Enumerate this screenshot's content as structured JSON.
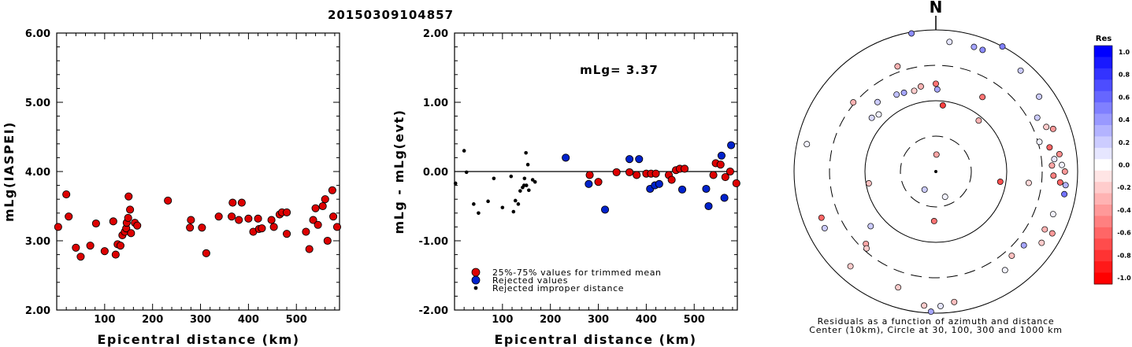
{
  "title": "20150309104857",
  "chart_data": [
    {
      "type": "scatter",
      "ylabel": "mLg(IASPEI)",
      "xlabel": "Epicentral distance (km)",
      "xlim": [
        0,
        590
      ],
      "ylim": [
        2.0,
        6.0
      ],
      "xticks": [
        "100",
        "200",
        "300",
        "400",
        "500"
      ],
      "yticks": [
        "2.00",
        "3.00",
        "4.00",
        "5.00",
        "6.00"
      ],
      "series": [
        {
          "marker": "red-circle",
          "points": [
            [
              3,
              3.2
            ],
            [
              20,
              3.67
            ],
            [
              25,
              3.35
            ],
            [
              40,
              2.9
            ],
            [
              50,
              2.77
            ],
            [
              70,
              2.93
            ],
            [
              82,
              3.25
            ],
            [
              100,
              2.85
            ],
            [
              118,
              3.28
            ],
            [
              123,
              2.8
            ],
            [
              127,
              2.95
            ],
            [
              133,
              2.93
            ],
            [
              137,
              3.08
            ],
            [
              142,
              3.13
            ],
            [
              145,
              3.18
            ],
            [
              146,
              3.26
            ],
            [
              149,
              3.33
            ],
            [
              150,
              3.64
            ],
            [
              153,
              3.45
            ],
            [
              155,
              3.11
            ],
            [
              163,
              3.26
            ],
            [
              168,
              3.22
            ],
            [
              232,
              3.58
            ],
            [
              278,
              3.19
            ],
            [
              280,
              3.3
            ],
            [
              303,
              3.19
            ],
            [
              312,
              2.82
            ],
            [
              338,
              3.35
            ],
            [
              365,
              3.35
            ],
            [
              367,
              3.55
            ],
            [
              380,
              3.3
            ],
            [
              386,
              3.55
            ],
            [
              400,
              3.32
            ],
            [
              410,
              3.13
            ],
            [
              420,
              3.32
            ],
            [
              422,
              3.17
            ],
            [
              428,
              3.18
            ],
            [
              448,
              3.3
            ],
            [
              453,
              3.2
            ],
            [
              465,
              3.38
            ],
            [
              470,
              3.41
            ],
            [
              480,
              3.41
            ],
            [
              480,
              3.1
            ],
            [
              520,
              3.13
            ],
            [
              527,
              2.88
            ],
            [
              535,
              3.3
            ],
            [
              540,
              3.47
            ],
            [
              545,
              3.23
            ],
            [
              555,
              3.5
            ],
            [
              560,
              3.6
            ],
            [
              565,
              3.0
            ],
            [
              575,
              3.73
            ],
            [
              577,
              3.35
            ],
            [
              585,
              3.2
            ]
          ]
        }
      ]
    },
    {
      "type": "scatter",
      "ylabel": "mLg - mLg(evt)",
      "xlabel": "Epicentral distance (km)",
      "xlim": [
        0,
        590
      ],
      "ylim": [
        -2.0,
        2.0
      ],
      "xticks": [
        "100",
        "200",
        "300",
        "400",
        "500"
      ],
      "yticks": [
        "-2.00",
        "-1.00",
        "0.00",
        "1.00",
        "2.00"
      ],
      "annotation": "mLg= 3.37",
      "legend": [
        "25%-75% values for trimmed mean",
        "Rejected values",
        "Rejected improper distance"
      ],
      "series": [
        {
          "marker": "red-circle",
          "points": [
            [
              282,
              -0.05
            ],
            [
              300,
              -0.15
            ],
            [
              338,
              -0.01
            ],
            [
              365,
              -0.01
            ],
            [
              380,
              -0.05
            ],
            [
              400,
              -0.03
            ],
            [
              410,
              -0.03
            ],
            [
              420,
              -0.03
            ],
            [
              447,
              -0.05
            ],
            [
              453,
              -0.12
            ],
            [
              462,
              0.02
            ],
            [
              470,
              0.04
            ],
            [
              480,
              0.04
            ],
            [
              540,
              -0.05
            ],
            [
              545,
              0.12
            ],
            [
              555,
              0.1
            ],
            [
              565,
              -0.08
            ],
            [
              575,
              0.0
            ],
            [
              588,
              -0.17
            ]
          ]
        },
        {
          "marker": "blue-circle",
          "points": [
            [
              232,
              0.2
            ],
            [
              280,
              -0.18
            ],
            [
              314,
              -0.55
            ],
            [
              365,
              0.18
            ],
            [
              385,
              0.18
            ],
            [
              408,
              -0.25
            ],
            [
              418,
              -0.2
            ],
            [
              427,
              -0.18
            ],
            [
              475,
              -0.26
            ],
            [
              525,
              -0.25
            ],
            [
              530,
              -0.5
            ],
            [
              557,
              0.23
            ],
            [
              563,
              -0.38
            ],
            [
              577,
              0.38
            ]
          ]
        },
        {
          "marker": "black-dot",
          "points": [
            [
              2,
              -0.17
            ],
            [
              20,
              0.3
            ],
            [
              25,
              -0.01
            ],
            [
              40,
              -0.47
            ],
            [
              50,
              -0.6
            ],
            [
              70,
              -0.43
            ],
            [
              82,
              -0.1
            ],
            [
              100,
              -0.52
            ],
            [
              118,
              -0.07
            ],
            [
              123,
              -0.58
            ],
            [
              127,
              -0.42
            ],
            [
              133,
              -0.47
            ],
            [
              137,
              -0.28
            ],
            [
              142,
              -0.23
            ],
            [
              145,
              -0.2
            ],
            [
              146,
              -0.1
            ],
            [
              149,
              0.27
            ],
            [
              150,
              -0.2
            ],
            [
              153,
              0.1
            ],
            [
              155,
              -0.27
            ],
            [
              163,
              -0.12
            ],
            [
              168,
              -0.15
            ]
          ]
        }
      ]
    },
    {
      "type": "polar-scatter",
      "north_label": "N",
      "caption_line1": "Residuals as a function of azimuth and distance",
      "caption_line2": "Center (10km), Circle at 30, 100, 300 and 1000 km",
      "colorbar_title": "Res",
      "colorbar_ticks": [
        "1.0",
        "0.8",
        "0.6",
        "0.4",
        "0.2",
        "0.0",
        "-0.2",
        "-0.4",
        "-0.6",
        "-0.8",
        "-1.0"
      ],
      "colors": {
        "positive": "#0000ff",
        "negative": "#ff0000",
        "zero": "#ffffff"
      },
      "residuals": [
        {
          "az": 2,
          "r": 0.12,
          "res": -0.35
        },
        {
          "az": 315,
          "r": 0.57,
          "res": 0.05
        },
        {
          "az": 310,
          "r": 0.59,
          "res": 0.15
        },
        {
          "az": 320,
          "r": 0.64,
          "res": 0.2
        },
        {
          "az": 333,
          "r": 0.61,
          "res": 0.25
        },
        {
          "az": 338,
          "r": 0.6,
          "res": 0.35
        },
        {
          "az": 345,
          "r": 0.59,
          "res": -0.2
        },
        {
          "az": 350,
          "r": 0.61,
          "res": -0.3
        },
        {
          "az": 0,
          "r": 0.62,
          "res": -0.55
        },
        {
          "az": 6,
          "r": 0.47,
          "res": -0.75
        },
        {
          "az": 1,
          "r": 0.58,
          "res": 0.35
        },
        {
          "az": 340,
          "r": 0.79,
          "res": -0.3
        },
        {
          "az": 350,
          "r": 0.99,
          "res": 0.45
        },
        {
          "az": 6,
          "r": 0.92,
          "res": 0.1
        },
        {
          "az": 17,
          "r": 0.92,
          "res": 0.35
        },
        {
          "az": 21,
          "r": 0.92,
          "res": 0.45
        },
        {
          "az": 28,
          "r": 1.0,
          "res": 0.5
        },
        {
          "az": 40,
          "r": 0.93,
          "res": 0.2
        },
        {
          "az": 54,
          "r": 0.9,
          "res": 0.2
        },
        {
          "az": 32,
          "r": 0.62,
          "res": -0.55
        },
        {
          "az": 40,
          "r": 0.47,
          "res": -0.3
        },
        {
          "az": 62,
          "r": 0.81,
          "res": 0.2
        },
        {
          "az": 68,
          "r": 0.84,
          "res": -0.2
        },
        {
          "az": 70,
          "r": 0.88,
          "res": -0.4
        },
        {
          "az": 74,
          "r": 0.76,
          "res": 0.05
        },
        {
          "az": 78,
          "r": 0.82,
          "res": -0.6
        },
        {
          "az": 82,
          "r": 0.88,
          "res": -0.45
        },
        {
          "az": 84,
          "r": 0.84,
          "res": 0.1
        },
        {
          "az": 87,
          "r": 0.82,
          "res": -0.35
        },
        {
          "az": 87,
          "r": 0.89,
          "res": 0.05
        },
        {
          "az": 92,
          "r": 0.83,
          "res": -0.5
        },
        {
          "az": 90,
          "r": 0.91,
          "res": -0.4
        },
        {
          "az": 95,
          "r": 0.88,
          "res": -0.6
        },
        {
          "az": 96,
          "r": 0.92,
          "res": 0.3
        },
        {
          "az": 100,
          "r": 0.92,
          "res": 0.55
        },
        {
          "az": 97,
          "r": 0.66,
          "res": -0.15
        },
        {
          "az": 99,
          "r": 0.46,
          "res": -0.7
        },
        {
          "az": 110,
          "r": 0.88,
          "res": 0.05
        },
        {
          "az": 118,
          "r": 0.87,
          "res": -0.3
        },
        {
          "az": 118,
          "r": 0.93,
          "res": -0.4
        },
        {
          "az": 124,
          "r": 0.9,
          "res": -0.2
        },
        {
          "az": 130,
          "r": 0.81,
          "res": 0.35
        },
        {
          "az": 138,
          "r": 0.8,
          "res": -0.25
        },
        {
          "az": 145,
          "r": 0.85,
          "res": 0.05
        },
        {
          "az": 160,
          "r": 0.19,
          "res": 0.05
        },
        {
          "az": 172,
          "r": 0.93,
          "res": -0.25
        },
        {
          "az": 178,
          "r": 0.95,
          "res": 0.1
        },
        {
          "az": 182,
          "r": 0.99,
          "res": 0.35
        },
        {
          "az": 185,
          "r": 0.95,
          "res": -0.2
        },
        {
          "az": 182,
          "r": 0.35,
          "res": -0.55
        },
        {
          "az": 198,
          "r": 0.86,
          "res": -0.2
        },
        {
          "az": 212,
          "r": 0.15,
          "res": 0.2
        },
        {
          "az": 222,
          "r": 0.9,
          "res": -0.2
        },
        {
          "az": 224,
          "r": 0.71,
          "res": -0.35
        },
        {
          "az": 222,
          "r": 0.73,
          "res": -0.2
        },
        {
          "az": 230,
          "r": 0.6,
          "res": 0.2
        },
        {
          "az": 243,
          "r": 0.88,
          "res": 0.2
        },
        {
          "az": 248,
          "r": 0.87,
          "res": -0.6
        },
        {
          "az": 260,
          "r": 0.48,
          "res": -0.25
        },
        {
          "az": 282,
          "r": 0.93,
          "res": 0.05
        },
        {
          "az": 310,
          "r": 0.76,
          "res": -0.3
        }
      ]
    }
  ]
}
